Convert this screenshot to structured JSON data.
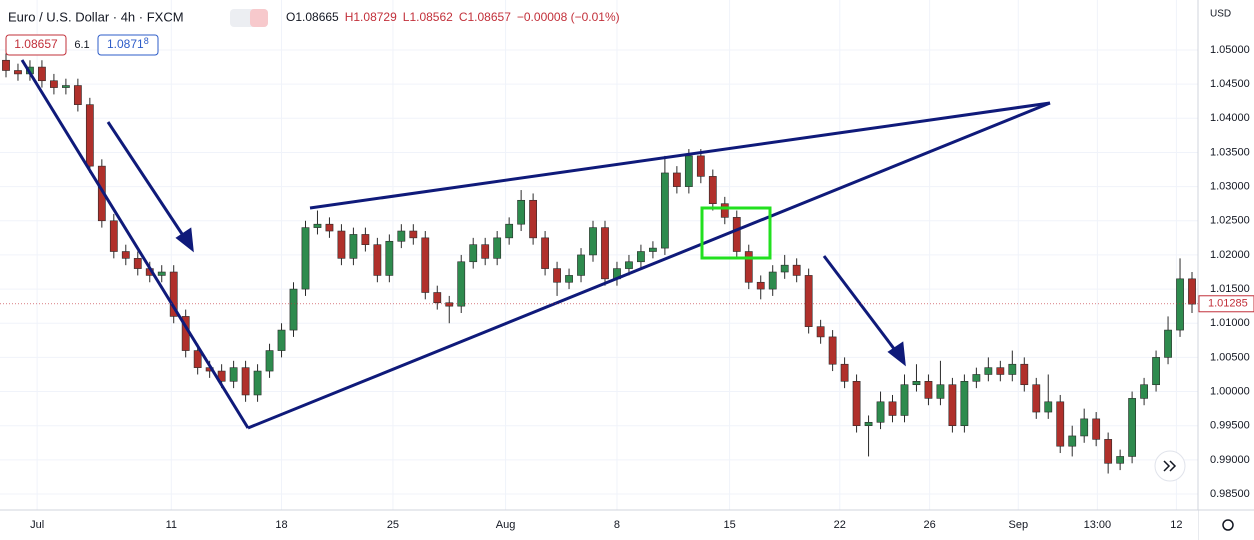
{
  "chart_data": {
    "type": "candlestick",
    "title": "Euro / U.S. Dollar · 4h · FXCM",
    "legend_values": [
      "O1.08665",
      "H1.08729",
      "L1.08562",
      "C1.08657",
      "−0.00008 (−0.01%)"
    ],
    "bid": "1.08657",
    "spread": "6.1",
    "ask": "1.0871",
    "ask_fraction": "8",
    "currency": "USD",
    "last_price": {
      "value": 1.01285,
      "label": "1.01285"
    },
    "up_color": "#2e8b4e",
    "down_color": "#b0302b",
    "wick_color": "#2a2a2a",
    "grid": true,
    "ylim": [
      0.98266,
      1.05732
    ],
    "yticks": [
      {
        "value": 1.05,
        "label": "1.05000"
      },
      {
        "value": 1.045,
        "label": "1.04500"
      },
      {
        "value": 1.04,
        "label": "1.04000"
      },
      {
        "value": 1.035,
        "label": "1.03500"
      },
      {
        "value": 1.03,
        "label": "1.03000"
      },
      {
        "value": 1.025,
        "label": "1.02500"
      },
      {
        "value": 1.02,
        "label": "1.02000"
      },
      {
        "value": 1.015,
        "label": "1.01500"
      },
      {
        "value": 1.01,
        "label": "1.01000"
      },
      {
        "value": 1.005,
        "label": "1.00500"
      },
      {
        "value": 1,
        "label": "1.00000"
      },
      {
        "value": 0.995,
        "label": "0.99500"
      },
      {
        "value": 0.99,
        "label": "0.99000"
      },
      {
        "value": 0.985,
        "label": "0.98500"
      }
    ],
    "xlim": [
      -0.5,
      99.5
    ],
    "xticks": [
      {
        "value": 2.6,
        "label": "Jul"
      },
      {
        "value": 13.8,
        "label": "11"
      },
      {
        "value": 23,
        "label": "18"
      },
      {
        "value": 32.3,
        "label": "25"
      },
      {
        "value": 41.7,
        "label": "Aug"
      },
      {
        "value": 51,
        "label": "8"
      },
      {
        "value": 60.4,
        "label": "15"
      },
      {
        "value": 69.6,
        "label": "22"
      },
      {
        "value": 77.1,
        "label": "26"
      },
      {
        "value": 84.5,
        "label": "Sep"
      },
      {
        "value": 91.1,
        "label": "13:00"
      },
      {
        "value": 97.7,
        "label": "12"
      }
    ],
    "ohlc": [
      [
        1.0485,
        1.0495,
        1.046,
        1.047
      ],
      [
        1.047,
        1.048,
        1.0455,
        1.0465
      ],
      [
        1.0465,
        1.0485,
        1.0455,
        1.0475
      ],
      [
        1.0475,
        1.0485,
        1.0445,
        1.0455
      ],
      [
        1.0455,
        1.0465,
        1.0435,
        1.0445
      ],
      [
        1.0445,
        1.0458,
        1.0435,
        1.0448
      ],
      [
        1.0448,
        1.0458,
        1.041,
        1.042
      ],
      [
        1.042,
        1.043,
        1.032,
        1.033
      ],
      [
        1.033,
        1.034,
        1.024,
        1.025
      ],
      [
        1.025,
        1.026,
        1.0195,
        1.0205
      ],
      [
        1.0205,
        1.0215,
        1.0185,
        1.0195
      ],
      [
        1.0195,
        1.0205,
        1.017,
        1.018
      ],
      [
        1.018,
        1.019,
        1.016,
        1.017
      ],
      [
        1.017,
        1.0185,
        1.016,
        1.0175
      ],
      [
        1.0175,
        1.0185,
        1.01,
        1.011
      ],
      [
        1.011,
        1.012,
        1.005,
        1.006
      ],
      [
        1.006,
        1.007,
        1.0025,
        1.0035
      ],
      [
        1.0035,
        1.0045,
        1.002,
        1.003
      ],
      [
        1.003,
        1.004,
        1.0005,
        1.0015
      ],
      [
        1.0015,
        1.0045,
        1.0005,
        1.0035
      ],
      [
        1.0035,
        1.0045,
        0.9985,
        0.9995
      ],
      [
        0.9995,
        1.004,
        0.9985,
        1.003
      ],
      [
        1.003,
        1.007,
        1.002,
        1.006
      ],
      [
        1.006,
        1.01,
        1.005,
        1.009
      ],
      [
        1.009,
        1.016,
        1.008,
        1.015
      ],
      [
        1.015,
        1.025,
        1.014,
        1.024
      ],
      [
        1.024,
        1.0265,
        1.023,
        1.0245
      ],
      [
        1.0245,
        1.0255,
        1.0225,
        1.0235
      ],
      [
        1.0235,
        1.0245,
        1.0185,
        1.0195
      ],
      [
        1.0195,
        1.024,
        1.0185,
        1.023
      ],
      [
        1.023,
        1.024,
        1.0205,
        1.0215
      ],
      [
        1.0215,
        1.0225,
        1.016,
        1.017
      ],
      [
        1.017,
        1.023,
        1.016,
        1.022
      ],
      [
        1.022,
        1.0245,
        1.021,
        1.0235
      ],
      [
        1.0235,
        1.0245,
        1.0215,
        1.0225
      ],
      [
        1.0225,
        1.0235,
        1.0135,
        1.0145
      ],
      [
        1.0145,
        1.0155,
        1.012,
        1.013
      ],
      [
        1.013,
        1.014,
        1.01,
        1.0125
      ],
      [
        1.0125,
        1.02,
        1.0115,
        1.019
      ],
      [
        1.019,
        1.0225,
        1.018,
        1.0215
      ],
      [
        1.0215,
        1.0225,
        1.0185,
        1.0195
      ],
      [
        1.0195,
        1.0235,
        1.0185,
        1.0225
      ],
      [
        1.0225,
        1.0255,
        1.0215,
        1.0245
      ],
      [
        1.0245,
        1.0295,
        1.0235,
        1.028
      ],
      [
        1.028,
        1.029,
        1.0215,
        1.0225
      ],
      [
        1.0225,
        1.0235,
        1.017,
        1.018
      ],
      [
        1.018,
        1.019,
        1.014,
        1.016
      ],
      [
        1.016,
        1.018,
        1.015,
        1.017
      ],
      [
        1.017,
        1.021,
        1.016,
        1.02
      ],
      [
        1.02,
        1.025,
        1.019,
        1.024
      ],
      [
        1.024,
        1.025,
        1.0155,
        1.0165
      ],
      [
        1.0165,
        1.019,
        1.0155,
        1.018
      ],
      [
        1.018,
        1.02,
        1.017,
        1.019
      ],
      [
        1.019,
        1.0215,
        1.018,
        1.0205
      ],
      [
        1.0205,
        1.022,
        1.0195,
        1.021
      ],
      [
        1.021,
        1.0345,
        1.02,
        1.032
      ],
      [
        1.032,
        1.033,
        1.029,
        1.03
      ],
      [
        1.03,
        1.0355,
        1.029,
        1.0345
      ],
      [
        1.0345,
        1.0355,
        1.0305,
        1.0315
      ],
      [
        1.0315,
        1.0325,
        1.0265,
        1.0275
      ],
      [
        1.0275,
        1.0285,
        1.0245,
        1.0255
      ],
      [
        1.0255,
        1.0265,
        1.0195,
        1.0205
      ],
      [
        1.0205,
        1.0215,
        1.015,
        1.016
      ],
      [
        1.016,
        1.017,
        1.0135,
        1.015
      ],
      [
        1.015,
        1.0185,
        1.014,
        1.0175
      ],
      [
        1.0175,
        1.02,
        1.0165,
        1.0185
      ],
      [
        1.0185,
        1.0195,
        1.016,
        1.017
      ],
      [
        1.017,
        1.018,
        1.0085,
        1.0095
      ],
      [
        1.0095,
        1.0105,
        1.007,
        1.008
      ],
      [
        1.008,
        1.009,
        1.003,
        1.004
      ],
      [
        1.004,
        1.005,
        1.0005,
        1.0015
      ],
      [
        1.0015,
        1.0025,
        0.994,
        0.995
      ],
      [
        0.995,
        0.9965,
        0.9905,
        0.9955
      ],
      [
        0.9955,
        1.0,
        0.9945,
        0.9985
      ],
      [
        0.9985,
        0.9995,
        0.9955,
        0.9965
      ],
      [
        0.9965,
        1.0025,
        0.9955,
        1.001
      ],
      [
        1.001,
        1.004,
        1.0,
        1.0015
      ],
      [
        1.0015,
        1.0025,
        0.998,
        0.999
      ],
      [
        0.999,
        1.0045,
        0.998,
        1.001
      ],
      [
        1.001,
        1.002,
        0.994,
        0.995
      ],
      [
        0.995,
        1.0025,
        0.994,
        1.0015
      ],
      [
        1.0015,
        1.0035,
        1.0005,
        1.0025
      ],
      [
        1.0025,
        1.005,
        1.0015,
        1.0035
      ],
      [
        1.0035,
        1.0045,
        1.0015,
        1.0025
      ],
      [
        1.0025,
        1.006,
        1.0015,
        1.004
      ],
      [
        1.004,
        1.005,
        1.0,
        1.001
      ],
      [
        1.001,
        1.002,
        0.996,
        0.997
      ],
      [
        0.997,
        1.0025,
        0.996,
        0.9985
      ],
      [
        0.9985,
        0.9995,
        0.991,
        0.992
      ],
      [
        0.992,
        0.995,
        0.9905,
        0.9935
      ],
      [
        0.9935,
        0.9975,
        0.9925,
        0.996
      ],
      [
        0.996,
        0.997,
        0.992,
        0.993
      ],
      [
        0.993,
        0.994,
        0.988,
        0.9895
      ],
      [
        0.9895,
        0.9915,
        0.9885,
        0.9905
      ],
      [
        0.9905,
        1.0,
        0.9895,
        0.999
      ],
      [
        0.999,
        1.002,
        0.998,
        1.001
      ],
      [
        1.001,
        1.006,
        1.0,
        1.005
      ],
      [
        1.005,
        1.011,
        1.004,
        1.009
      ],
      [
        1.009,
        1.0195,
        1.008,
        1.0165
      ],
      [
        1.0165,
        1.0175,
        1.0115,
        1.0128
      ]
    ]
  }
}
